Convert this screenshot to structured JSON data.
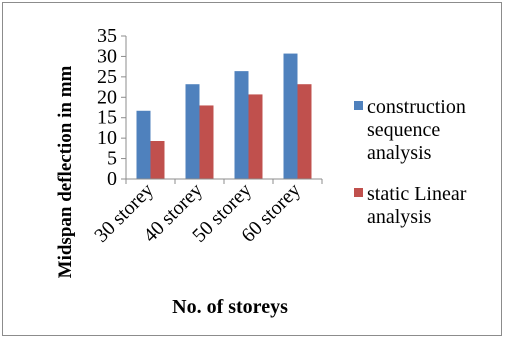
{
  "chart_data": {
    "type": "bar",
    "categories": [
      "30 storey",
      "40 storey",
      "50 storey",
      "60 storey"
    ],
    "series": [
      {
        "name": "construction sequence analysis",
        "legend_lines": [
          "construction",
          "sequence",
          "analysis"
        ],
        "values": [
          16.7,
          23.2,
          26.4,
          30.7
        ],
        "color": "#4f81bd"
      },
      {
        "name": "static Linear analysis",
        "legend_lines": [
          "static Linear",
          "analysis"
        ],
        "values": [
          9.3,
          18.0,
          20.7,
          23.2
        ],
        "color": "#c0504d"
      }
    ],
    "title": "",
    "xlabel": "No. of storeys",
    "ylabel": "Midspan deflection in mm",
    "ylim": [
      0,
      35
    ],
    "yticks": [
      "0",
      "5",
      "10",
      "15",
      "20",
      "25",
      "30",
      "35"
    ],
    "grid": false,
    "legend_position": "right"
  }
}
